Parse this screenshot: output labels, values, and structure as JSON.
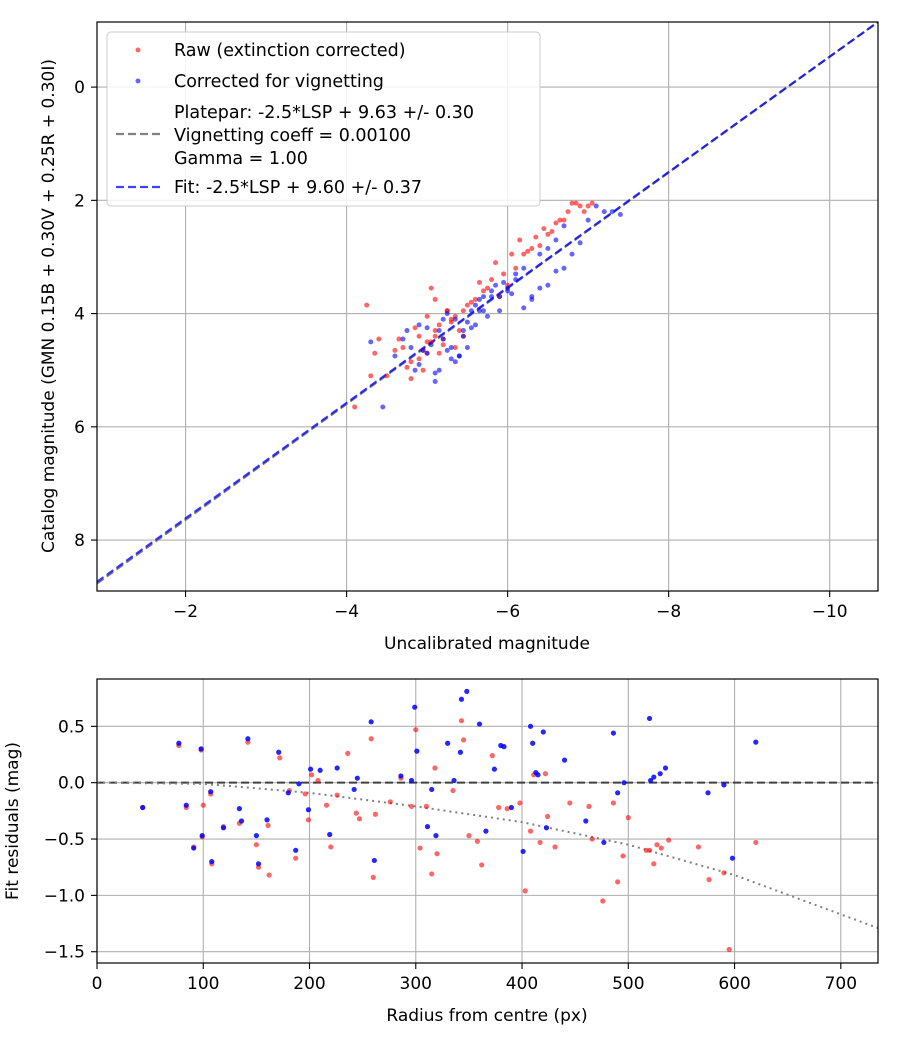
{
  "chart_data": [
    {
      "type": "scatter",
      "xlabel": "Uncalibrated magnitude",
      "ylabel": "Catalog magnitude (GMN 0.15B + 0.30V + 0.25R + 0.30I)",
      "xlim": [
        -0.9,
        -10.6
      ],
      "ylim": [
        8.9,
        -1.15
      ],
      "x_inverted": true,
      "y_inverted": true,
      "grid": true,
      "xticks": [
        -2,
        -4,
        -6,
        -8,
        -10
      ],
      "xtick_labels": [
        "−2",
        "−4",
        "−6",
        "−8",
        "−10"
      ],
      "yticks": [
        0,
        2,
        4,
        6,
        8
      ],
      "ytick_labels": [
        "0",
        "2",
        "4",
        "6",
        "8"
      ],
      "legend_position": "top-left",
      "legend": [
        {
          "label": "Raw (extinction corrected)",
          "kind": "marker",
          "color": "#ff0000"
        },
        {
          "label": "Corrected for vignetting",
          "kind": "marker",
          "color": "#0000ff"
        },
        {
          "label": "Platepar: -2.5*LSP + 9.63 +/- 0.30",
          "line2": "Vignetting coeff = 0.00100",
          "line3": "Gamma = 1.00",
          "kind": "dashed",
          "color": "#808080"
        },
        {
          "label": "Fit: -2.5*LSP + 9.60 +/- 0.37",
          "kind": "dashed",
          "color": "#0000ff"
        }
      ],
      "lines": [
        {
          "name": "platepar",
          "color": "#808080",
          "x": [
            -0.9,
            -10.6
          ],
          "y": [
            8.768,
            -1.15
          ]
        },
        {
          "name": "fit",
          "color": "#0000ff",
          "x": [
            -0.9,
            -10.6
          ],
          "y": [
            8.738,
            -1.15
          ]
        }
      ],
      "series": [
        {
          "name": "Raw (extinction corrected)",
          "color": "#ff0000",
          "x": [
            -4.1,
            -4.25,
            -4.3,
            -4.35,
            -4.4,
            -4.5,
            -4.6,
            -4.65,
            -4.7,
            -4.75,
            -4.8,
            -4.85,
            -4.9,
            -4.95,
            -5.0,
            -5.05,
            -5.1,
            -5.15,
            -5.2,
            -5.25,
            -5.3,
            -5.35,
            -5.4,
            -5.45,
            -5.5,
            -5.6,
            -5.7,
            -5.8,
            -5.9,
            -6.0,
            -6.1,
            -6.2,
            -6.3,
            -6.4,
            -6.5,
            -6.6,
            -6.7,
            -6.8,
            -6.9,
            -7.0,
            -4.9,
            -5.0,
            -5.1,
            -5.2,
            -5.3,
            -4.8,
            -4.95,
            -5.05,
            -5.15,
            -5.25,
            -5.35,
            -5.45,
            -5.55,
            -5.65,
            -5.75,
            -5.85,
            -5.95,
            -6.05,
            -6.15,
            -6.25,
            -6.35,
            -6.45,
            -6.55,
            -6.65,
            -6.75,
            -6.85,
            -6.95,
            -7.05,
            -5.0,
            -5.1
          ],
          "y": [
            5.65,
            3.85,
            5.1,
            4.7,
            4.45,
            5.1,
            4.65,
            4.45,
            4.6,
            4.95,
            5.15,
            4.25,
            4.8,
            4.65,
            4.5,
            3.55,
            4.3,
            4.7,
            4.45,
            3.95,
            4.1,
            4.6,
            4.3,
            3.95,
            3.85,
            3.75,
            3.6,
            3.4,
            3.7,
            3.5,
            3.2,
            2.95,
            2.85,
            2.8,
            2.6,
            2.4,
            2.35,
            2.05,
            2.1,
            2.1,
            4.4,
            4.05,
            3.75,
            4.55,
            4.15,
            4.85,
            5.0,
            4.5,
            4.2,
            3.95,
            4.05,
            4.4,
            3.8,
            3.45,
            3.55,
            3.1,
            3.3,
            2.95,
            2.7,
            2.9,
            2.65,
            2.5,
            2.55,
            2.35,
            2.2,
            2.05,
            2.2,
            2.05,
            4.7,
            4.4
          ]
        },
        {
          "name": "Corrected for vignetting",
          "color": "#0000ff",
          "x": [
            -4.3,
            -4.45,
            -4.6,
            -4.7,
            -4.8,
            -4.85,
            -4.9,
            -4.95,
            -5.0,
            -5.05,
            -5.1,
            -5.15,
            -5.2,
            -5.25,
            -5.3,
            -5.35,
            -5.4,
            -5.45,
            -5.5,
            -5.55,
            -5.6,
            -5.65,
            -5.7,
            -5.75,
            -5.8,
            -5.85,
            -5.9,
            -5.95,
            -6.0,
            -6.05,
            -6.1,
            -6.2,
            -6.3,
            -6.4,
            -6.5,
            -6.6,
            -6.7,
            -6.8,
            -6.9,
            -7.0,
            -7.1,
            -7.2,
            -7.3,
            -7.4,
            -4.75,
            -4.9,
            -5.0,
            -5.1,
            -5.2,
            -5.3,
            -5.4,
            -5.5,
            -5.6,
            -5.7,
            -5.8,
            -5.9,
            -6.0,
            -6.1,
            -6.2,
            -6.3,
            -6.4,
            -6.5,
            -6.6,
            -6.7,
            -5.15,
            -5.25,
            -5.35,
            -5.45,
            -5.55,
            -5.65
          ],
          "y": [
            4.5,
            5.65,
            4.75,
            4.45,
            4.6,
            5.0,
            4.2,
            4.65,
            4.7,
            4.55,
            5.2,
            4.3,
            4.45,
            4.0,
            4.8,
            4.1,
            4.75,
            4.3,
            4.6,
            3.95,
            4.2,
            3.75,
            3.7,
            4.05,
            3.7,
            3.5,
            3.95,
            3.45,
            3.6,
            3.65,
            3.3,
            3.9,
            3.75,
            3.55,
            3.5,
            3.25,
            3.2,
            2.95,
            2.75,
            2.35,
            2.1,
            2.2,
            2.2,
            2.25,
            4.3,
            4.9,
            4.25,
            5.05,
            4.1,
            4.6,
            4.75,
            4.15,
            3.85,
            3.95,
            3.6,
            3.7,
            3.55,
            3.4,
            3.2,
            3.7,
            2.95,
            2.85,
            2.7,
            2.45,
            5.0,
            4.65,
            4.85,
            4.4,
            4.25,
            3.95
          ]
        }
      ]
    },
    {
      "type": "scatter",
      "xlabel": "Radius from centre (px)",
      "ylabel": "Fit residuals (mag)",
      "xlim": [
        0,
        735
      ],
      "ylim": [
        -1.6,
        0.92
      ],
      "grid": true,
      "xticks": [
        0,
        100,
        200,
        300,
        400,
        500,
        600,
        700
      ],
      "xtick_labels": [
        "0",
        "100",
        "200",
        "300",
        "400",
        "500",
        "600",
        "700"
      ],
      "yticks": [
        0.5,
        0.0,
        -0.5,
        -1.0,
        -1.5
      ],
      "ytick_labels": [
        "0.5",
        "0.0",
        "−0.5",
        "−1.0",
        "−1.5"
      ],
      "zero_line": {
        "color": "#404040",
        "style": "dashed"
      },
      "trend_line": {
        "color": "#808080",
        "style": "dotted",
        "x": [
          0,
          100,
          200,
          300,
          400,
          500,
          600,
          735
        ],
        "y": [
          0.0,
          -0.01,
          -0.09,
          -0.21,
          -0.35,
          -0.55,
          -0.82,
          -1.29
        ]
      },
      "series": [
        {
          "name": "Raw (extinction corrected)",
          "color": "#ff0000",
          "x": [
            43,
            77,
            84,
            91,
            98,
            99,
            100,
            107,
            108,
            119,
            134,
            142,
            150,
            152,
            161,
            162,
            172,
            181,
            187,
            196,
            199,
            202,
            208,
            216,
            220,
            226,
            236,
            244,
            247,
            258,
            260,
            262,
            276,
            286,
            296,
            300,
            304,
            310,
            315,
            318,
            320,
            335,
            343,
            345,
            350,
            358,
            362,
            372,
            378,
            386,
            398,
            403,
            408,
            411,
            417,
            422,
            424,
            431,
            445,
            463,
            466,
            476,
            486,
            490,
            495,
            500,
            517,
            520,
            524,
            527,
            531,
            538,
            566,
            576,
            590,
            595,
            620
          ],
          "x_note": "approx",
          "y": [
            -0.22,
            0.33,
            -0.22,
            -0.57,
            0.29,
            -0.48,
            -0.2,
            -0.1,
            -0.72,
            -0.39,
            -0.36,
            0.36,
            -0.55,
            -0.75,
            -0.38,
            -0.82,
            0.22,
            -0.07,
            -0.67,
            -0.1,
            -0.33,
            0.07,
            0.02,
            -0.2,
            -0.57,
            -0.11,
            0.26,
            -0.27,
            -0.32,
            0.39,
            -0.84,
            -0.28,
            -0.17,
            0.04,
            -0.21,
            0.47,
            -0.58,
            -0.21,
            -0.81,
            0.13,
            -0.63,
            -0.07,
            0.55,
            0.38,
            -0.47,
            -0.52,
            -0.73,
            0.24,
            -0.22,
            -0.23,
            -0.18,
            -0.96,
            -0.43,
            0.07,
            -0.53,
            0.08,
            -0.3,
            -0.57,
            -0.18,
            -0.21,
            -0.5,
            -1.05,
            -0.18,
            -0.88,
            -0.65,
            -0.31,
            -0.6,
            -0.6,
            -0.72,
            -0.55,
            -0.58,
            -0.51,
            -0.57,
            -0.86,
            -0.8,
            -1.48,
            -0.53
          ]
        },
        {
          "name": "Corrected for vignetting",
          "color": "#0000ff",
          "x": [
            43,
            77,
            84,
            91,
            98,
            99,
            107,
            108,
            119,
            134,
            136,
            142,
            150,
            152,
            160,
            171,
            180,
            187,
            190,
            199,
            201,
            210,
            219,
            226,
            242,
            245,
            258,
            261,
            286,
            296,
            299,
            301,
            311,
            315,
            319,
            330,
            336,
            342,
            343,
            348,
            360,
            366,
            374,
            380,
            383,
            390,
            401,
            408,
            410,
            413,
            415,
            420,
            423,
            440,
            460,
            477,
            486,
            490,
            496,
            520,
            521,
            524,
            530,
            535,
            575,
            590,
            598,
            620
          ],
          "y": [
            -0.22,
            0.35,
            -0.2,
            -0.58,
            0.3,
            -0.47,
            -0.08,
            -0.7,
            -0.4,
            -0.23,
            -0.34,
            0.39,
            -0.47,
            -0.72,
            -0.33,
            0.27,
            -0.09,
            -0.6,
            -0.01,
            -0.24,
            0.12,
            0.11,
            -0.46,
            0.13,
            -0.06,
            0.04,
            0.54,
            -0.69,
            0.06,
            0.02,
            0.67,
            0.28,
            -0.39,
            -0.06,
            -0.47,
            0.35,
            0.02,
            0.27,
            0.74,
            0.81,
            0.52,
            -0.43,
            0.12,
            0.33,
            0.32,
            -0.22,
            -0.61,
            0.5,
            0.35,
            0.09,
            0.07,
            0.45,
            -0.4,
            0.2,
            -0.34,
            -0.53,
            0.44,
            -0.09,
            0.0,
            0.57,
            0.02,
            0.05,
            0.08,
            0.13,
            -0.09,
            -0.02,
            -0.67,
            0.36
          ]
        }
      ]
    }
  ]
}
